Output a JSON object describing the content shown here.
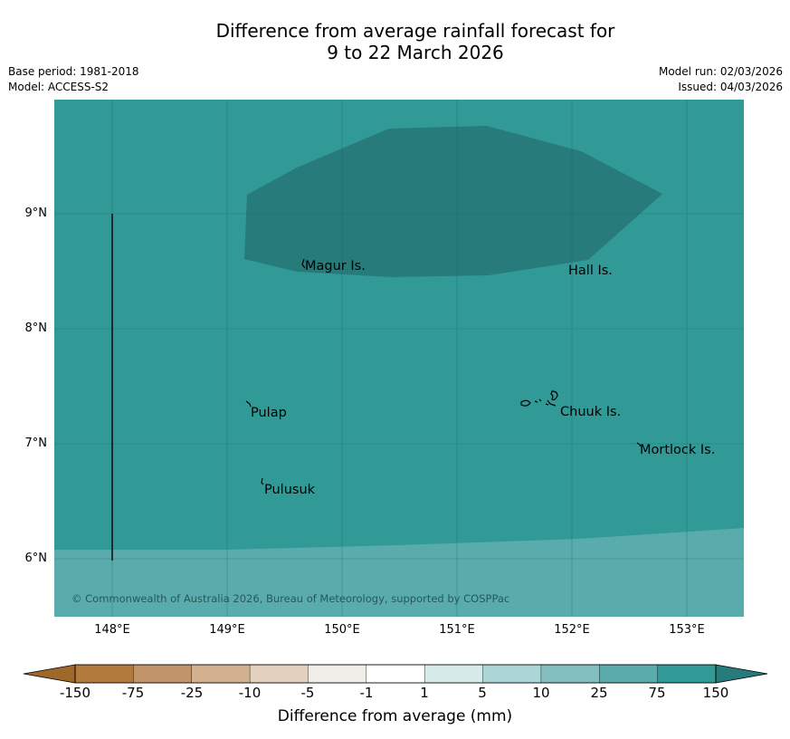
{
  "header": {
    "title_line1": "Difference from average rainfall forecast for",
    "title_line2": "9 to 22 March 2026",
    "base_period": "Base period: 1981-2018",
    "model": "Model: ACCESS-S2",
    "model_run": "Model run: 02/03/2026",
    "issued": "Issued: 04/03/2026"
  },
  "map": {
    "latitude_labels": [
      "9°N",
      "8°N",
      "7°N",
      "6°N"
    ],
    "longitude_labels": [
      "148°E",
      "149°E",
      "150°E",
      "151°E",
      "152°E",
      "153°E"
    ],
    "places": [
      "Magur Is.",
      "Hall Is.",
      "Pulap",
      "Chuuk Is.",
      "Mortlock Is.",
      "Pulusuk"
    ],
    "copyright": "© Commonwealth of Australia 2026, Bureau of Meteorology, supported by COSPPac",
    "colors": {
      "anomaly_75_150": "#319a97",
      "anomaly_gt_150": "#277b7a",
      "anomaly_25_75": "#5aacac",
      "gridline": "#1f5f5e"
    }
  },
  "legend": {
    "tick_labels": [
      "-150",
      "-75",
      "-25",
      "-10",
      "-5",
      "-1",
      "1",
      "5",
      "10",
      "25",
      "75",
      "150"
    ],
    "colors": [
      "#a0672a",
      "#b37a3e",
      "#c1946b",
      "#d2b18f",
      "#e3d0bf",
      "#f1eeea",
      "#ffffff",
      "#d6ebea",
      "#acd5d5",
      "#83bfbf",
      "#5aacac",
      "#319a97",
      "#277b7a"
    ],
    "title": "Difference from average (mm)"
  }
}
